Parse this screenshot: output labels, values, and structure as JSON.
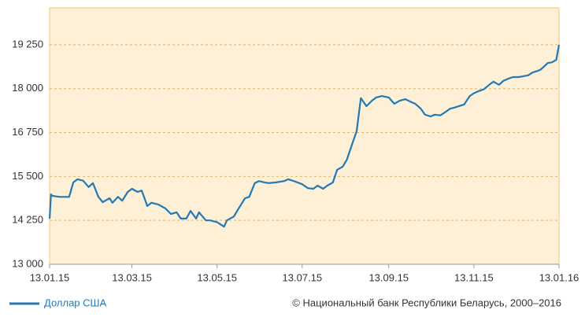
{
  "chart_data": {
    "type": "line",
    "x": [
      "13.01.15",
      "14.01.15",
      "15.01.15",
      "20.01.15",
      "27.01.15",
      "30.01.15",
      "02.02.15",
      "06.02.15",
      "10.02.15",
      "13.02.15",
      "17.02.15",
      "20.02.15",
      "25.02.15",
      "27.02.15",
      "03.03.15",
      "06.03.15",
      "10.03.15",
      "13.03.15",
      "17.03.15",
      "20.03.15",
      "24.03.15",
      "27.03.15",
      "01.04.15",
      "06.04.15",
      "10.04.15",
      "14.04.15",
      "17.04.15",
      "21.04.15",
      "24.04.15",
      "28.04.15",
      "30.04.15",
      "05.05.15",
      "08.05.15",
      "13.05.15",
      "18.05.15",
      "20.05.15",
      "25.05.15",
      "28.05.15",
      "02.06.15",
      "05.06.15",
      "09.06.15",
      "12.06.15",
      "16.06.15",
      "19.06.15",
      "24.06.15",
      "30.06.15",
      "03.07.15",
      "07.07.15",
      "13.07.15",
      "17.07.15",
      "21.07.15",
      "24.07.15",
      "28.07.15",
      "31.07.15",
      "04.08.15",
      "07.08.15",
      "11.08.15",
      "14.08.15",
      "18.08.15",
      "21.08.15",
      "24.08.15",
      "26.08.15",
      "28.08.15",
      "01.09.15",
      "04.09.15",
      "08.09.15",
      "13.09.15",
      "17.09.15",
      "21.09.15",
      "25.09.15",
      "29.09.15",
      "02.10.15",
      "06.10.15",
      "09.10.15",
      "13.10.15",
      "16.10.15",
      "20.10.15",
      "23.10.15",
      "27.10.15",
      "30.10.15",
      "03.11.15",
      "06.11.15",
      "10.11.15",
      "13.11.15",
      "17.11.15",
      "20.11.15",
      "24.11.15",
      "27.11.15",
      "01.12.15",
      "04.12.15",
      "08.12.15",
      "11.12.15",
      "15.12.15",
      "18.12.15",
      "22.12.15",
      "25.12.15",
      "29.12.15",
      "31.12.15",
      "05.01.16",
      "08.01.16",
      "11.01.16",
      "13.01.16"
    ],
    "series": [
      {
        "name": "Доллар США",
        "color": "#2479b5",
        "values": [
          14300,
          14990,
          14950,
          14920,
          14920,
          15330,
          15420,
          15380,
          15200,
          15310,
          14920,
          14770,
          14880,
          14750,
          14920,
          14810,
          15060,
          15150,
          15060,
          15100,
          14660,
          14750,
          14700,
          14590,
          14430,
          14480,
          14300,
          14300,
          14520,
          14300,
          14480,
          14250,
          14250,
          14200,
          14070,
          14250,
          14360,
          14560,
          14880,
          14920,
          15310,
          15370,
          15330,
          15310,
          15330,
          15370,
          15420,
          15370,
          15280,
          15170,
          15150,
          15240,
          15150,
          15240,
          15330,
          15690,
          15780,
          15980,
          16450,
          16790,
          17730,
          17620,
          17500,
          17660,
          17750,
          17790,
          17750,
          17570,
          17660,
          17700,
          17620,
          17570,
          17430,
          17260,
          17210,
          17260,
          17240,
          17320,
          17430,
          17460,
          17510,
          17550,
          17790,
          17870,
          17940,
          17980,
          18110,
          18200,
          18110,
          18220,
          18290,
          18330,
          18330,
          18350,
          18380,
          18460,
          18510,
          18550,
          18730,
          18750,
          18820,
          19250
        ]
      }
    ],
    "ylim": [
      13000,
      20300
    ],
    "yticks": [
      {
        "value": 13000,
        "label": "13 000"
      },
      {
        "value": 14250,
        "label": "14 250"
      },
      {
        "value": 15500,
        "label": "15 500"
      },
      {
        "value": 16750,
        "label": "16 750"
      },
      {
        "value": 18000,
        "label": "18 000"
      },
      {
        "value": 19250,
        "label": "19 250"
      }
    ],
    "xlim": [
      "13.01.15",
      "13.01.16"
    ],
    "xticks": [
      "13.01.15",
      "13.03.15",
      "13.05.15",
      "13.07.15",
      "13.09.15",
      "13.11.15",
      "13.01.16"
    ],
    "grid": true,
    "legend": "bottom-left",
    "source": "© Национальный банк Республики Беларусь, 2000–2016"
  }
}
